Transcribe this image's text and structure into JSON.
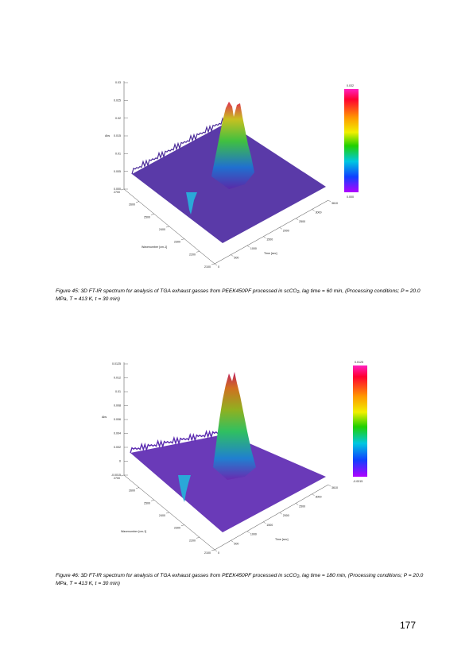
{
  "page_number": "177",
  "figures": [
    {
      "caption_pre": "Figure 45: 3D FT-IR spectrum for analysis of TGA exhaust gasses from PEEK450PF processed in scCO",
      "caption_sub": "2",
      "caption_post": ", lag time = 60 min, (Processing conditions; P = 20.0 MPa, T = 413 K, t = 30 min)",
      "z_label": "Abs",
      "x_label": "Wavenumber [cm-1]",
      "y_label": "Time [sec]",
      "colorbar_max": "0.032",
      "colorbar_min": "0.000",
      "chart_data": {
        "type": "heatmap",
        "title": "",
        "z_ticks": [
          "0.03",
          "0.025",
          "0.02",
          "0.015",
          "0.01",
          "0.005",
          "0.000"
        ],
        "wavenumber_ticks": [
          "2700",
          "2600",
          "2500",
          "2400",
          "2300",
          "2200",
          "2100"
        ],
        "time_ticks": [
          "0",
          "500",
          "1000",
          "1500",
          "2000",
          "2500",
          "3000",
          "3610"
        ],
        "peaks": [
          {
            "wavenumber": 2330,
            "time": 1800,
            "abs": 0.03
          },
          {
            "wavenumber": 2360,
            "time": 1800,
            "abs": 0.027
          },
          {
            "wavenumber": 2340,
            "time": 0,
            "abs": 0.006
          }
        ]
      }
    },
    {
      "caption_pre": "Figure 46: 3D FT-IR spectrum for analysis of TGA exhaust gasses from PEEK450PF processed in scCO",
      "caption_sub": "2",
      "caption_post": ", lag time = 180 min, (Processing conditions; P = 20.0 MPa, T = 413 K, t = 30 min)",
      "z_label": "Abs",
      "x_label": "Wavenumber [cm-1]",
      "y_label": "Time [sec]",
      "colorbar_max": "0.0125",
      "colorbar_min": "-0.0015",
      "chart_data": {
        "type": "heatmap",
        "title": "",
        "z_ticks": [
          "0.0125",
          "0.012",
          "0.01",
          "0.008",
          "0.006",
          "0.004",
          "0.002",
          "0",
          "-0.0015"
        ],
        "wavenumber_ticks": [
          "2700",
          "2600",
          "2500",
          "2400",
          "2300",
          "2200",
          "2100"
        ],
        "time_ticks": [
          "0",
          "500",
          "1000",
          "1500",
          "2000",
          "2500",
          "3000",
          "3610"
        ],
        "peaks": [
          {
            "wavenumber": 2330,
            "time": 1800,
            "abs": 0.0125
          },
          {
            "wavenumber": 2360,
            "time": 1800,
            "abs": 0.011
          },
          {
            "wavenumber": 2340,
            "time": 0,
            "abs": 0.003
          }
        ]
      }
    }
  ]
}
